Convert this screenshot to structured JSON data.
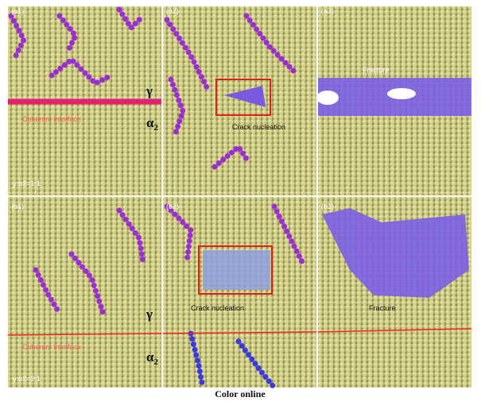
{
  "panels": [
    {
      "label": "(a1)",
      "phase_top": "γ",
      "phase_bottom": "α",
      "phase_bottom_sub": "2",
      "interface": "Coherent interface",
      "ratio": "γ:α2=1:1"
    },
    {
      "label": "(a2)",
      "note": "Crack nucleation"
    },
    {
      "label": "(a3)",
      "note": "Fracture"
    },
    {
      "label": "(b1)",
      "phase_top": "γ",
      "phase_bottom": "α",
      "phase_bottom_sub": "2",
      "interface": "Coherent interface",
      "ratio": "γ:α2=2:1"
    },
    {
      "label": "(b2)",
      "note": "Crack nucleation"
    },
    {
      "label": "(b3)",
      "note": "Fracture"
    }
  ],
  "caption": "Color online"
}
